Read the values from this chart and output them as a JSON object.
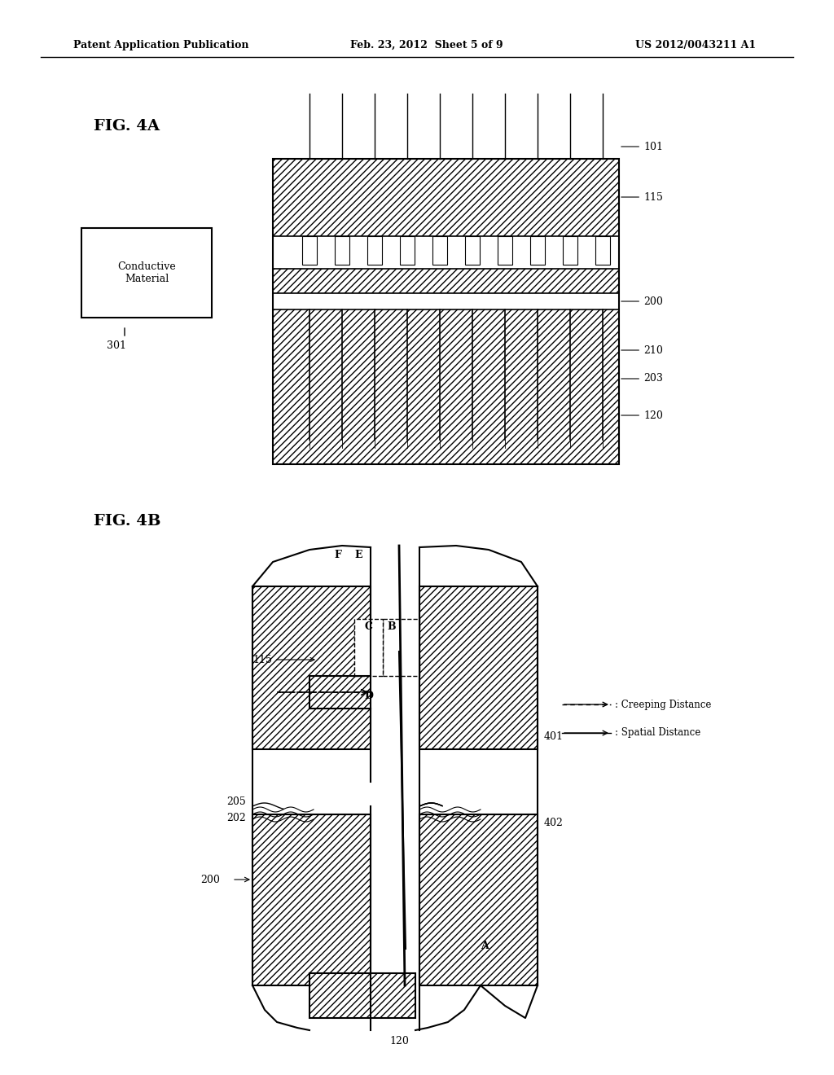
{
  "bg_color": "#ffffff",
  "header_left": "Patent Application Publication",
  "header_mid": "Feb. 23, 2012  Sheet 5 of 9",
  "header_right": "US 2012/0043211 A1",
  "fig4a_label": "FIG. 4A",
  "fig4b_label": "FIG. 4B",
  "legend_creeping": ": Creeping Distance",
  "legend_spatial": ": Spatial Distance",
  "box_label": "Conductive\nMaterial",
  "ref_301": "301",
  "ref_101": "101",
  "ref_115_4a": "115",
  "ref_200_4a": "200",
  "ref_210": "210",
  "ref_203": "203",
  "ref_120_4a": "120",
  "ref_115_4b": "115",
  "ref_200_4b": "200",
  "ref_120_4b": "120",
  "ref_401": "401",
  "ref_402": "402",
  "ref_205": "205",
  "ref_202": "202",
  "label_A": "A",
  "label_B": "B",
  "label_C": "C",
  "label_D": "D",
  "label_E": "E",
  "label_F": "F",
  "hatch_pattern": "////",
  "line_color": "#000000",
  "hatch_color": "#555555"
}
